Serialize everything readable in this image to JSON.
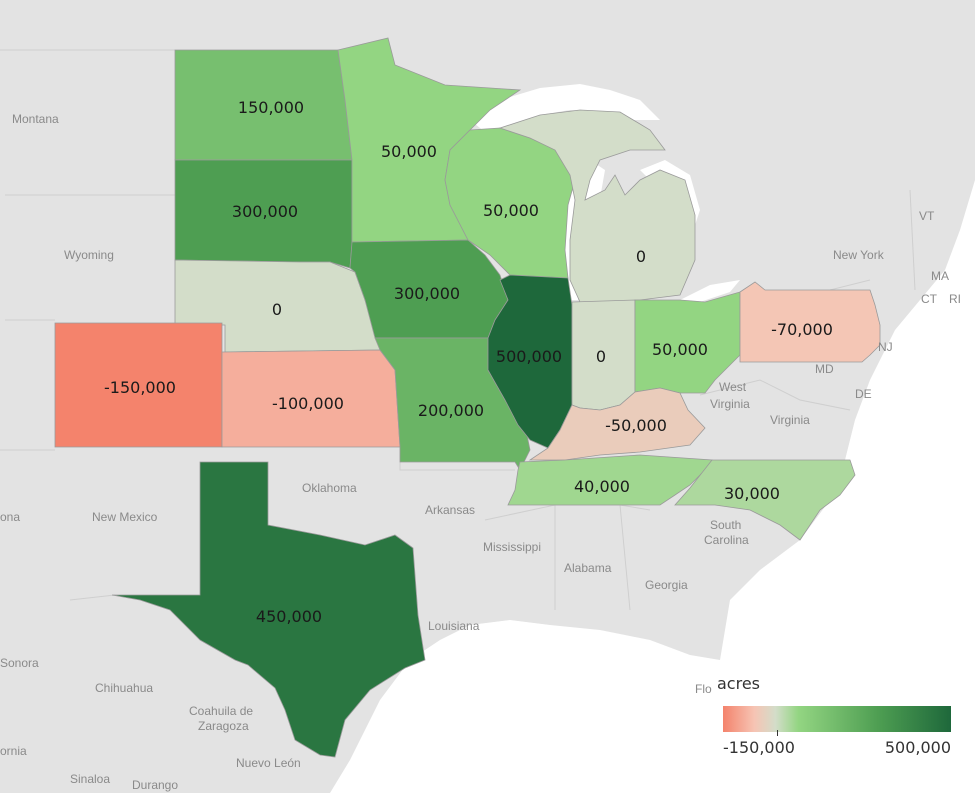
{
  "legend": {
    "title": "acres",
    "min_label": "-150,000",
    "max_label": "500,000",
    "min": -150000,
    "max": 500000,
    "colors": [
      "#f4836c",
      "#f6c4b4",
      "#d3ddc9",
      "#93d582",
      "#4e9e52",
      "#1e683b"
    ]
  },
  "states": [
    {
      "name": "north-dakota",
      "value": 150000,
      "label": "150,000"
    },
    {
      "name": "south-dakota",
      "value": 300000,
      "label": "300,000"
    },
    {
      "name": "nebraska",
      "value": 0,
      "label": "0"
    },
    {
      "name": "colorado",
      "value": -150000,
      "label": "-150,000"
    },
    {
      "name": "kansas",
      "value": -100000,
      "label": "-100,000"
    },
    {
      "name": "texas",
      "value": 450000,
      "label": "450,000"
    },
    {
      "name": "minnesota",
      "value": 50000,
      "label": "50,000"
    },
    {
      "name": "iowa",
      "value": 300000,
      "label": "300,000"
    },
    {
      "name": "missouri",
      "value": 200000,
      "label": "200,000"
    },
    {
      "name": "wisconsin",
      "value": 50000,
      "label": "50,000"
    },
    {
      "name": "illinois",
      "value": 500000,
      "label": "500,000"
    },
    {
      "name": "michigan",
      "value": 0,
      "label": "0"
    },
    {
      "name": "indiana",
      "value": 0,
      "label": "0"
    },
    {
      "name": "ohio",
      "value": 50000,
      "label": "50,000"
    },
    {
      "name": "kentucky",
      "value": -50000,
      "label": "-50,000"
    },
    {
      "name": "tennessee",
      "value": 40000,
      "label": "40,000"
    },
    {
      "name": "north-carolina",
      "value": 30000,
      "label": "30,000"
    },
    {
      "name": "pennsylvania",
      "value": -70000,
      "label": "-70,000"
    }
  ],
  "regions": [
    {
      "name": "montana",
      "text": "Montana"
    },
    {
      "name": "wyoming",
      "text": "Wyoming"
    },
    {
      "name": "new-mexico",
      "text": "New Mexico"
    },
    {
      "name": "oklahoma",
      "text": "Oklahoma"
    },
    {
      "name": "arkansas",
      "text": "Arkansas"
    },
    {
      "name": "mississippi",
      "text": "Mississippi"
    },
    {
      "name": "alabama",
      "text": "Alabama"
    },
    {
      "name": "georgia",
      "text": "Georgia"
    },
    {
      "name": "louisiana",
      "text": "Louisiana"
    },
    {
      "name": "south-carolina-1",
      "text": "South"
    },
    {
      "name": "south-carolina-2",
      "text": "Carolina"
    },
    {
      "name": "west-virginia-1",
      "text": "West"
    },
    {
      "name": "west-virginia-2",
      "text": "Virginia"
    },
    {
      "name": "virginia",
      "text": "Virginia"
    },
    {
      "name": "new-york",
      "text": "New York"
    },
    {
      "name": "vermont",
      "text": "VT"
    },
    {
      "name": "massachusetts",
      "text": "MA"
    },
    {
      "name": "connecticut",
      "text": "CT"
    },
    {
      "name": "rhode-island",
      "text": "RI"
    },
    {
      "name": "new-jersey",
      "text": "NJ"
    },
    {
      "name": "maryland",
      "text": "MD"
    },
    {
      "name": "delaware",
      "text": "DE"
    },
    {
      "name": "florida-partial",
      "text": "Flo"
    },
    {
      "name": "sonora-partial-1",
      "text": "ona"
    },
    {
      "name": "sonora",
      "text": "Sonora"
    },
    {
      "name": "chihuahua",
      "text": "Chihuahua"
    },
    {
      "name": "coahuila-1",
      "text": "Coahuila de"
    },
    {
      "name": "coahuila-2",
      "text": "Zaragoza"
    },
    {
      "name": "nuevo-leon",
      "text": "Nuevo León"
    },
    {
      "name": "california-partial",
      "text": "ornia"
    },
    {
      "name": "sinaloa",
      "text": "Sinaloa"
    },
    {
      "name": "durango",
      "text": "Durango"
    }
  ]
}
